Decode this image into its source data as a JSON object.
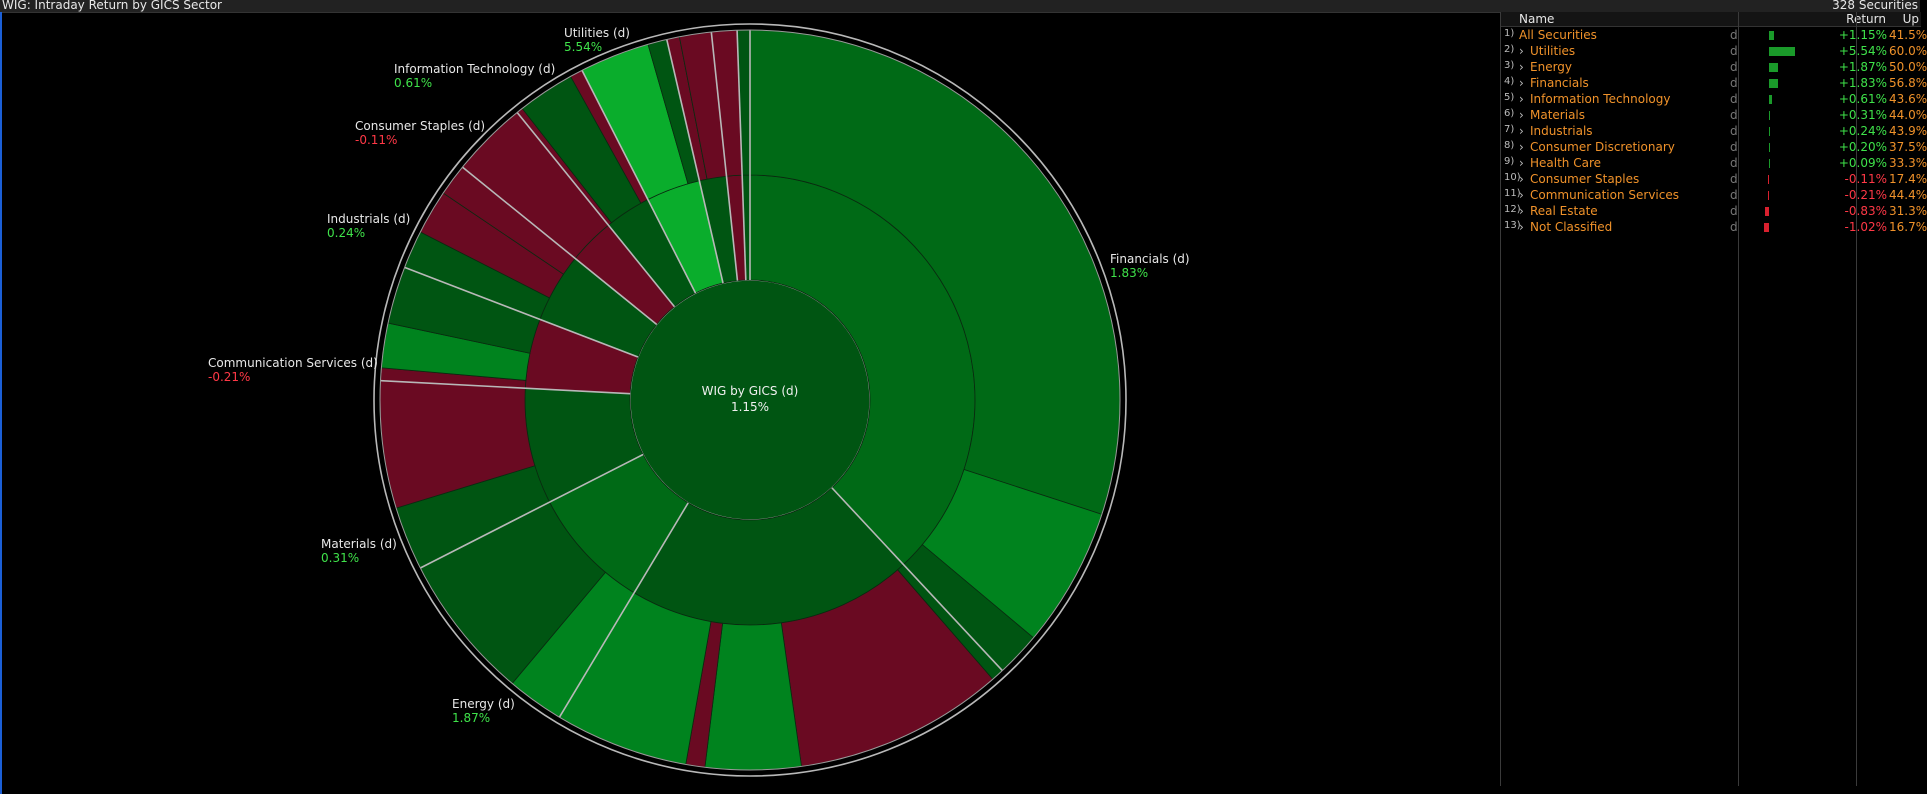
{
  "window": {
    "title": "WIG: Intraday Return by GICS Sector",
    "count": "328 Securities"
  },
  "center": {
    "label": "WIG by GICS (d)",
    "value": "1.15%"
  },
  "colors": {
    "pos": "#3fe24a",
    "neg": "#ff3846",
    "accent": "#f0922a"
  },
  "callouts": [
    {
      "name": "Utilities (d)",
      "value": "5.54%",
      "sign": "pos"
    },
    {
      "name": "Information Technology (d)",
      "value": "0.61%",
      "sign": "pos"
    },
    {
      "name": "Consumer Staples (d)",
      "value": "-0.11%",
      "sign": "neg"
    },
    {
      "name": "Industrials (d)",
      "value": "0.24%",
      "sign": "pos"
    },
    {
      "name": "Communication Services (d)",
      "value": "-0.21%",
      "sign": "neg"
    },
    {
      "name": "Materials (d)",
      "value": "0.31%",
      "sign": "pos"
    },
    {
      "name": "Energy (d)",
      "value": "1.87%",
      "sign": "pos"
    },
    {
      "name": "Financials (d)",
      "value": "1.83%",
      "sign": "pos"
    }
  ],
  "table": {
    "headers": {
      "name": "Name",
      "ret": "Return",
      "up": "Up"
    },
    "rows": [
      {
        "idx": "1)",
        "name": "All Securities",
        "d": "d",
        "ret": "+1.15%",
        "up": "41.5%",
        "chev": ""
      },
      {
        "idx": "2)",
        "name": "Utilities",
        "d": "d",
        "ret": "+5.54%",
        "up": "60.0%",
        "chev": ">"
      },
      {
        "idx": "3)",
        "name": "Energy",
        "d": "d",
        "ret": "+1.87%",
        "up": "50.0%",
        "chev": ">"
      },
      {
        "idx": "4)",
        "name": "Financials",
        "d": "d",
        "ret": "+1.83%",
        "up": "56.8%",
        "chev": ">"
      },
      {
        "idx": "5)",
        "name": "Information Technology",
        "d": "d",
        "ret": "+0.61%",
        "up": "43.6%",
        "chev": ">"
      },
      {
        "idx": "6)",
        "name": "Materials",
        "d": "d",
        "ret": "+0.31%",
        "up": "44.0%",
        "chev": ">"
      },
      {
        "idx": "7)",
        "name": "Industrials",
        "d": "d",
        "ret": "+0.24%",
        "up": "43.9%",
        "chev": ">"
      },
      {
        "idx": "8)",
        "name": "Consumer Discretionary",
        "d": "d",
        "ret": "+0.20%",
        "up": "37.5%",
        "chev": ">"
      },
      {
        "idx": "9)",
        "name": "Health Care",
        "d": "d",
        "ret": "+0.09%",
        "up": "33.3%",
        "chev": ">"
      },
      {
        "idx": "10)",
        "name": "Consumer Staples",
        "d": "d",
        "ret": "-0.11%",
        "up": "17.4%",
        "chev": ">"
      },
      {
        "idx": "11)",
        "name": "Communication Services",
        "d": "d",
        "ret": "-0.21%",
        "up": "44.4%",
        "chev": ">"
      },
      {
        "idx": "12)",
        "name": "Real Estate",
        "d": "d",
        "ret": "-0.83%",
        "up": "31.3%",
        "chev": ">"
      },
      {
        "idx": "13)",
        "name": "Not Classified",
        "d": "d",
        "ret": "-1.02%",
        "up": "16.7%",
        "chev": ">"
      }
    ]
  }
}
